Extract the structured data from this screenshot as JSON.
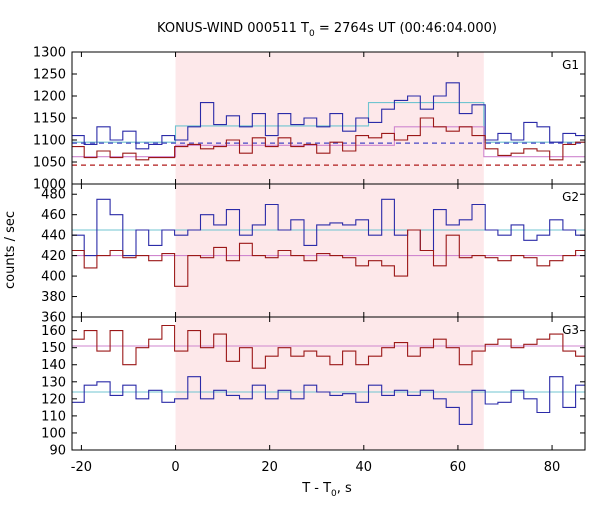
{
  "chart_data": {
    "type": "line",
    "title_main": "KONUS-WIND 000511 T",
    "title_sub": "0",
    "title_rest": " = 2764s UT (00:46:04.000)",
    "xlabel_main": "T - T",
    "xlabel_sub": "0",
    "xlabel_rest": ", s",
    "ylabel": "counts / sec",
    "xlim": [
      -22,
      87
    ],
    "xticks": [
      -20,
      0,
      20,
      40,
      60,
      80
    ],
    "highlight": {
      "from": 0,
      "to": 65.5,
      "color": "#fde8ea"
    },
    "bin_edges": [
      -22,
      -19.4,
      -16.7,
      -13.9,
      -11.2,
      -8.4,
      -5.7,
      -2.9,
      -0.2,
      2.6,
      5.3,
      8.1,
      10.8,
      13.6,
      16.3,
      19.1,
      21.8,
      24.5,
      27.3,
      30.0,
      32.8,
      35.5,
      38.3,
      41.0,
      43.8,
      46.5,
      49.3,
      52.0,
      54.8,
      57.5,
      60.3,
      63.0,
      65.8,
      68.5,
      71.3,
      74.0,
      76.8,
      79.5,
      82.3,
      85.0,
      87
    ],
    "panels": [
      {
        "label": "G1",
        "ylim": [
          1000,
          1300
        ],
        "yticks": [
          1000,
          1050,
          1100,
          1150,
          1200,
          1250,
          1300
        ],
        "series": [
          {
            "color": "#2b2ba8",
            "values": [
              1110,
              1090,
              1130,
              1100,
              1120,
              1080,
              1090,
              1110,
              1100,
              1130,
              1185,
              1135,
              1155,
              1130,
              1160,
              1110,
              1160,
              1135,
              1150,
              1130,
              1160,
              1120,
              1150,
              1140,
              1170,
              1190,
              1200,
              1170,
              1200,
              1230,
              1160,
              1180,
              1100,
              1115,
              1100,
              1140,
              1130,
              1095,
              1115,
              1110
            ]
          },
          {
            "color": "#9b1818",
            "values": [
              1085,
              1060,
              1075,
              1060,
              1070,
              1055,
              1060,
              1060,
              1085,
              1090,
              1080,
              1085,
              1100,
              1070,
              1105,
              1085,
              1105,
              1085,
              1090,
              1070,
              1095,
              1075,
              1110,
              1105,
              1115,
              1100,
              1110,
              1150,
              1130,
              1120,
              1130,
              1110,
              1080,
              1065,
              1070,
              1080,
              1075,
              1055,
              1090,
              1095
            ]
          }
        ],
        "fits": [
          {
            "color": "#70c4d0",
            "dash": false,
            "points": [
              [
                -22,
                1095
              ],
              [
                0,
                1095
              ],
              [
                0,
                1132
              ],
              [
                41,
                1132
              ],
              [
                41,
                1185
              ],
              [
                65.5,
                1185
              ],
              [
                65.5,
                1095
              ],
              [
                87,
                1095
              ]
            ]
          },
          {
            "color": "#cf86cf",
            "dash": false,
            "points": [
              [
                -22,
                1062
              ],
              [
                0,
                1062
              ],
              [
                0,
                1088
              ],
              [
                46.5,
                1088
              ],
              [
                46.5,
                1130
              ],
              [
                65.5,
                1130
              ],
              [
                65.5,
                1062
              ],
              [
                87,
                1062
              ]
            ]
          },
          {
            "color": "#4646c4",
            "dash": true,
            "points": [
              [
                -22,
                1093
              ],
              [
                87,
                1093
              ]
            ]
          },
          {
            "color": "#b01a1a",
            "dash": true,
            "points": [
              [
                -22,
                1043
              ],
              [
                87,
                1043
              ]
            ]
          }
        ]
      },
      {
        "label": "G2",
        "ylim": [
          360,
          490
        ],
        "yticks": [
          360,
          380,
          400,
          420,
          440,
          460,
          480
        ],
        "series": [
          {
            "color": "#2b2ba8",
            "values": [
              440,
              420,
              475,
              460,
              420,
              445,
              430,
              445,
              440,
              445,
              460,
              450,
              465,
              440,
              450,
              470,
              445,
              455,
              430,
              450,
              452,
              450,
              455,
              440,
              475,
              440,
              445,
              425,
              465,
              450,
              455,
              470,
              445,
              440,
              450,
              435,
              440,
              455,
              445,
              440
            ]
          },
          {
            "color": "#9b1818",
            "values": [
              425,
              408,
              420,
              425,
              418,
              420,
              415,
              422,
              390,
              420,
              418,
              428,
              415,
              432,
              420,
              418,
              425,
              420,
              415,
              422,
              420,
              418,
              410,
              415,
              410,
              400,
              445,
              425,
              410,
              440,
              418,
              420,
              418,
              415,
              420,
              418,
              410,
              415,
              420,
              425
            ]
          }
        ],
        "fits": [
          {
            "color": "#70c4d0",
            "dash": false,
            "points": [
              [
                -22,
                445
              ],
              [
                87,
                445
              ]
            ]
          },
          {
            "color": "#cf86cf",
            "dash": false,
            "points": [
              [
                -22,
                420
              ],
              [
                87,
                420
              ]
            ]
          }
        ]
      },
      {
        "label": "G3",
        "ylim": [
          90,
          168
        ],
        "yticks": [
          90,
          100,
          110,
          120,
          130,
          140,
          150,
          160
        ],
        "series": [
          {
            "color": "#2b2ba8",
            "values": [
              118,
              128,
              130,
              122,
              128,
              120,
              125,
              118,
              120,
              133,
              120,
              125,
              122,
              120,
              128,
              120,
              125,
              120,
              128,
              124,
              122,
              123,
              118,
              128,
              122,
              125,
              122,
              125,
              120,
              115,
              105,
              125,
              117,
              118,
              125,
              120,
              112,
              133,
              115,
              128
            ]
          },
          {
            "color": "#9b1818",
            "values": [
              155,
              160,
              148,
              160,
              140,
              150,
              155,
              163,
              148,
              160,
              150,
              158,
              142,
              150,
              138,
              145,
              150,
              145,
              148,
              145,
              140,
              148,
              140,
              145,
              150,
              153,
              145,
              150,
              155,
              150,
              140,
              148,
              152,
              155,
              150,
              152,
              155,
              158,
              148,
              145
            ]
          }
        ],
        "fits": [
          {
            "color": "#70c4d0",
            "dash": false,
            "points": [
              [
                -22,
                124
              ],
              [
                87,
                124
              ]
            ]
          },
          {
            "color": "#cf86cf",
            "dash": false,
            "points": [
              [
                -22,
                151
              ],
              [
                87,
                151
              ]
            ]
          }
        ]
      }
    ]
  }
}
